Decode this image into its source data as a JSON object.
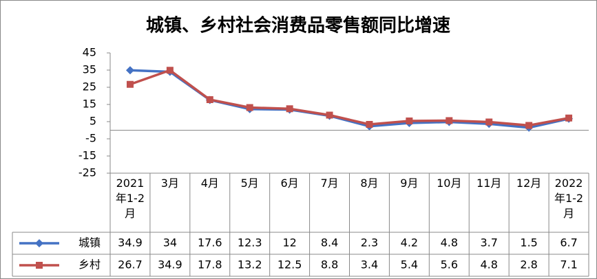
{
  "chart_data": {
    "type": "line",
    "title": "城镇、乡村社会消费品零售额同比增速",
    "categories": [
      "2021年1-2月",
      "3月",
      "4月",
      "5月",
      "6月",
      "7月",
      "8月",
      "9月",
      "10月",
      "11月",
      "12月",
      "2022年1-2月"
    ],
    "series": [
      {
        "name": "城镇",
        "color": "#4472c4",
        "marker": "diamond",
        "values": [
          34.9,
          34,
          17.6,
          12.3,
          12,
          8.4,
          2.3,
          4.2,
          4.8,
          3.7,
          1.5,
          6.7
        ]
      },
      {
        "name": "乡村",
        "color": "#c0504d",
        "marker": "square",
        "values": [
          26.7,
          34.9,
          17.8,
          13.2,
          12.5,
          8.8,
          3.4,
          5.4,
          5.6,
          4.8,
          2.8,
          7.1
        ]
      }
    ],
    "ylim": [
      -25,
      45
    ],
    "yticks": [
      -25,
      -15,
      -5,
      5,
      15,
      25,
      35,
      45
    ],
    "grid": false,
    "data_table": true
  }
}
